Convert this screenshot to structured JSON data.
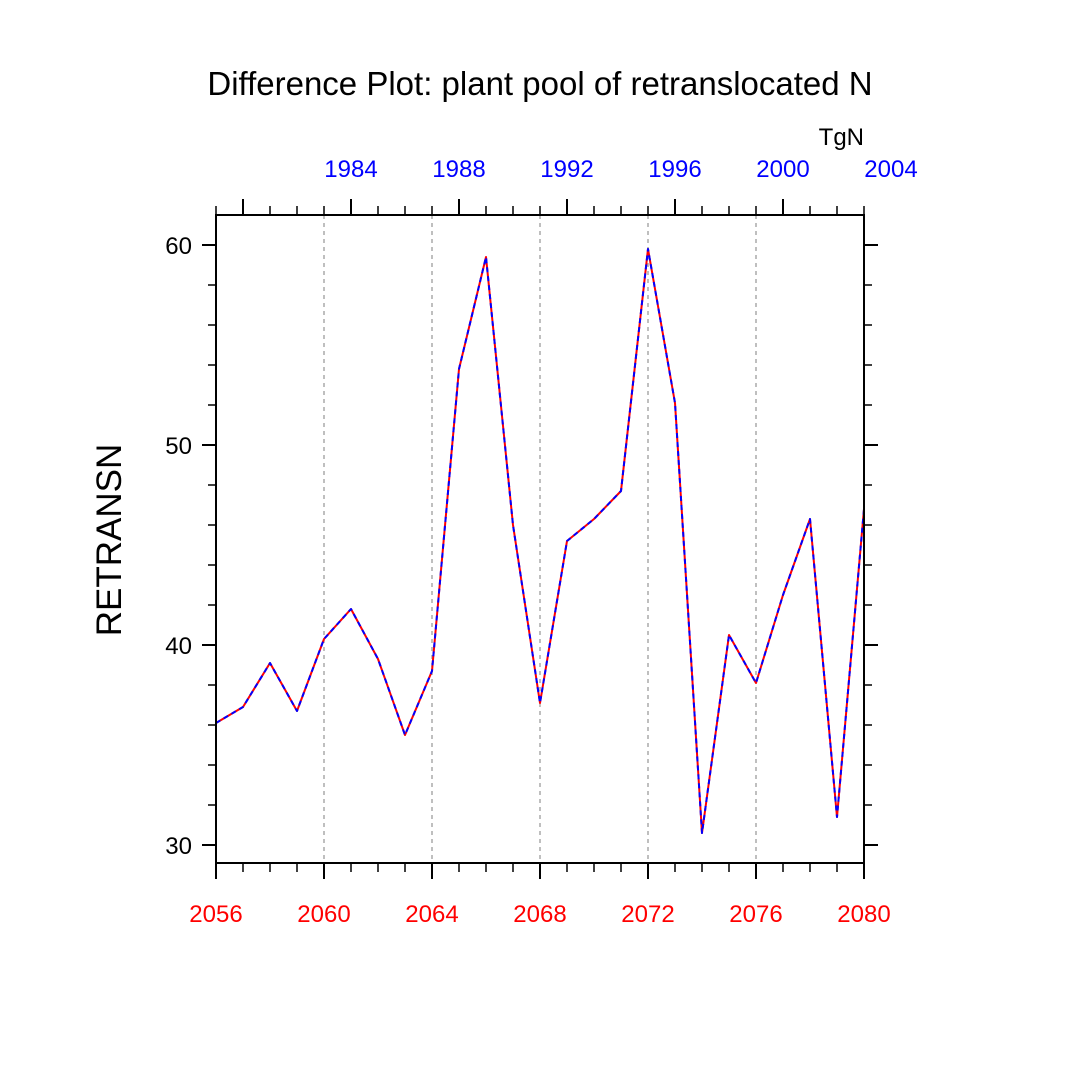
{
  "chart_data": {
    "type": "line",
    "title": "Difference Plot: plant pool of retranslocated N",
    "ylabel": "RETRANSN",
    "units_label": "TgN",
    "ylim": [
      29.1,
      61.5
    ],
    "xlim": [
      2056,
      2080
    ],
    "y_ticks": [
      "30",
      "40",
      "50",
      "60"
    ],
    "x_bottom_ticks": [
      "2056",
      "2060",
      "2064",
      "2068",
      "2072",
      "2076",
      "2080"
    ],
    "x_top_ticks": [
      "1984",
      "1988",
      "1992",
      "1996",
      "2000",
      "2004"
    ],
    "x_top_offset": 77,
    "grid_x": [
      2060,
      2064,
      2068,
      2072,
      2076
    ],
    "colors": {
      "bottom_axis": "#ff0000",
      "top_axis": "#0000ff",
      "series_solid": "#ff0000",
      "series_dashed": "#0000ff",
      "grid": "#aaaaaa"
    },
    "series": [
      {
        "name": "RETRANSN difference",
        "x": [
          2056,
          2057,
          2058,
          2059,
          2060,
          2061,
          2062,
          2063,
          2064,
          2065,
          2066,
          2067,
          2068,
          2069,
          2070,
          2071,
          2072,
          2073,
          2074,
          2075,
          2076,
          2077,
          2078,
          2079,
          2080
        ],
        "values": [
          36.1,
          36.9,
          39.1,
          36.7,
          40.3,
          41.8,
          39.3,
          35.5,
          38.7,
          53.8,
          59.4,
          46.0,
          37.1,
          45.2,
          46.3,
          47.7,
          59.8,
          52.1,
          30.6,
          40.5,
          38.1,
          42.5,
          46.3,
          31.4,
          46.8
        ]
      }
    ]
  }
}
